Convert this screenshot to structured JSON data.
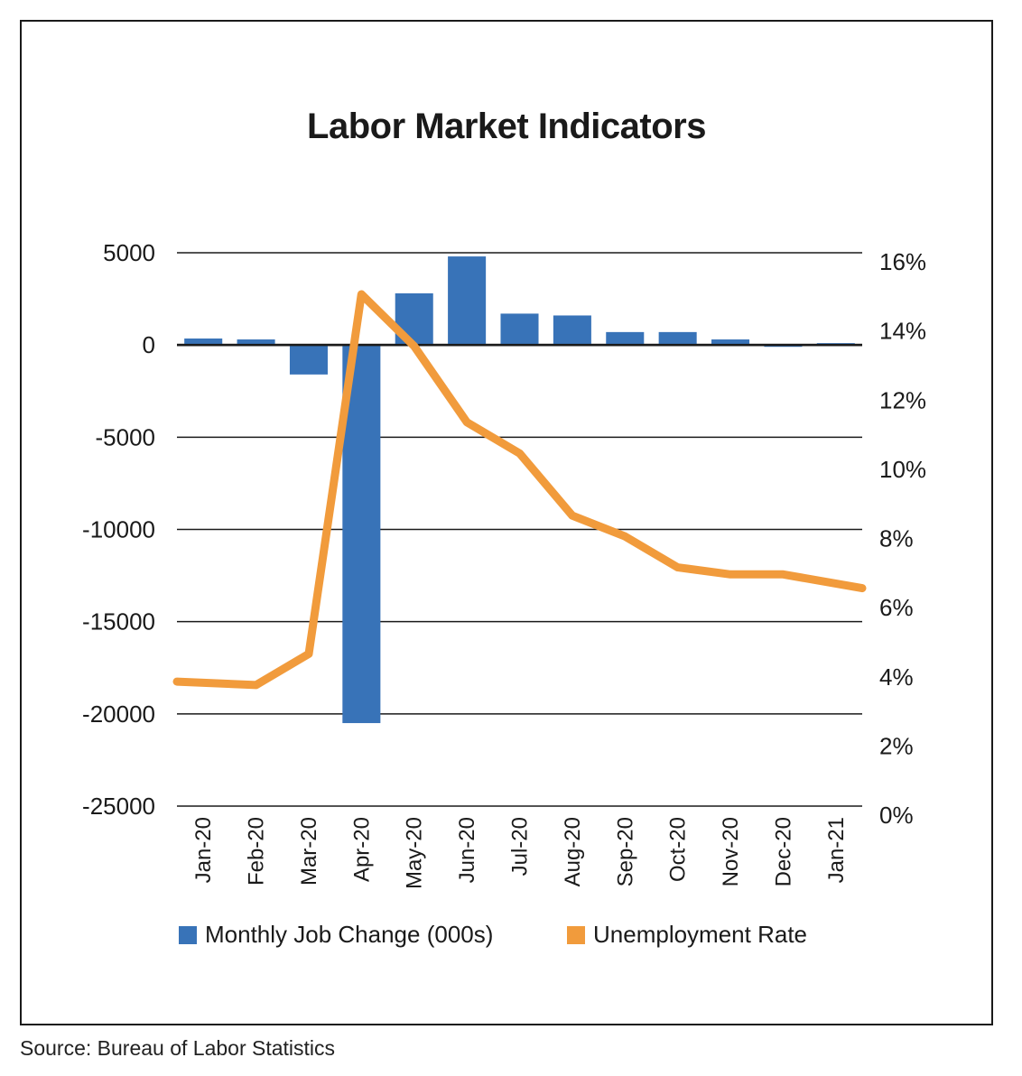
{
  "colors": {
    "bars": "#3873b8",
    "line": "#f19b3c",
    "grid": "#1a1a1a"
  },
  "source": "Source: Bureau of Labor Statistics",
  "chart_data": {
    "type": "bar",
    "title": "Labor Market Indicators",
    "categories": [
      "Jan-20",
      "Feb-20",
      "Mar-20",
      "Apr-20",
      "May-20",
      "Jun-20",
      "Jul-20",
      "Aug-20",
      "Sep-20",
      "Oct-20",
      "Nov-20",
      "Dec-20",
      "Jan-21"
    ],
    "series": [
      {
        "name": "Monthly Job Change (000s)",
        "type": "bar",
        "axis": "left",
        "values": [
          350,
          300,
          -1600,
          -20500,
          2800,
          4800,
          1700,
          1600,
          700,
          700,
          300,
          -100,
          100
        ]
      },
      {
        "name": "Unemployment Rate",
        "type": "line",
        "axis": "right",
        "values": [
          3.6,
          3.5,
          4.4,
          14.8,
          13.3,
          11.1,
          10.2,
          8.4,
          7.8,
          6.9,
          6.7,
          6.7,
          6.3
        ]
      }
    ],
    "y_left": {
      "min": -25000,
      "max": 5000,
      "ticks": [
        5000,
        0,
        -5000,
        -10000,
        -15000,
        -20000,
        -25000
      ],
      "tick_labels": [
        "5000",
        "0",
        "-5000",
        "-10000",
        "-15000",
        "-20000",
        "-25000"
      ]
    },
    "y_right": {
      "min": 0,
      "max": 16,
      "ticks": [
        16,
        14,
        12,
        10,
        8,
        6,
        4,
        2,
        0
      ],
      "tick_labels": [
        "16%",
        "14%",
        "12%",
        "10%",
        "8%",
        "6%",
        "4%",
        "2%",
        "0%"
      ]
    },
    "legend_position": "bottom",
    "grid": true
  }
}
